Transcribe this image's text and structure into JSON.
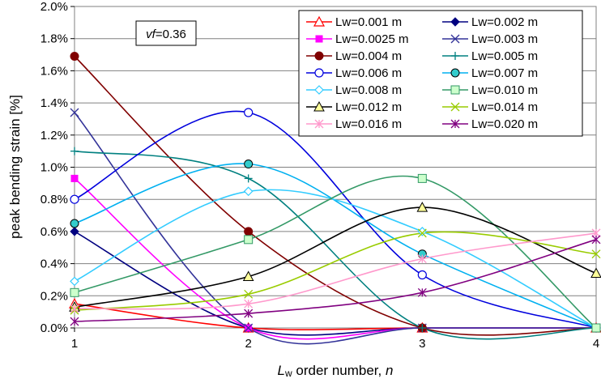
{
  "chart_data": {
    "type": "line",
    "xlabel_italic": "L",
    "xlabel_sub": "w",
    "xlabel_rest": " order number, ",
    "xlabel_n": "n",
    "ylabel": "peak bending strain [%]",
    "x_ticks": [
      "1",
      "2",
      "3",
      "4"
    ],
    "y_ticks": [
      "0.0%",
      "0.2%",
      "0.4%",
      "0.6%",
      "0.8%",
      "1.0%",
      "1.2%",
      "1.4%",
      "1.6%",
      "1.8%",
      "2.0%"
    ],
    "xlim": [
      1,
      4
    ],
    "ylim": [
      0,
      2.0
    ],
    "grid": "horizontal",
    "legend_position": "top-right",
    "annotation_italic": "vf",
    "annotation_rest": "=0.36",
    "series": [
      {
        "name": "Lw=0.001 m",
        "color": "#ff0000",
        "marker": "triangle-open",
        "x": [
          1,
          2,
          3,
          4
        ],
        "values": [
          0.15,
          0.0,
          0.0,
          0.0
        ]
      },
      {
        "name": "Lw=0.002 m",
        "color": "#000080",
        "marker": "diamond-filled",
        "x": [
          1,
          2,
          3,
          4
        ],
        "values": [
          0.6,
          0.0,
          0.0,
          0.0
        ]
      },
      {
        "name": "Lw=0.0025 m",
        "color": "#ff00ff",
        "marker": "square-filled",
        "x": [
          1,
          2,
          3,
          4
        ],
        "values": [
          0.93,
          0.0,
          0.0,
          0.0
        ]
      },
      {
        "name": "Lw=0.003 m",
        "color": "#333399",
        "marker": "x",
        "x": [
          1,
          2,
          3,
          4
        ],
        "values": [
          1.34,
          0.0,
          0.0,
          0.0
        ]
      },
      {
        "name": "Lw=0.004 m",
        "color": "#800000",
        "marker": "circle-filled",
        "x": [
          1,
          2,
          3,
          4
        ],
        "values": [
          1.69,
          0.6,
          0.0,
          0.0
        ]
      },
      {
        "name": "Lw=0.005 m",
        "color": "#008080",
        "marker": "plus",
        "x": [
          1,
          2,
          3,
          4
        ],
        "values": [
          1.1,
          0.93,
          0.0,
          0.0
        ]
      },
      {
        "name": "Lw=0.006 m",
        "color": "#0000dd",
        "marker": "circle-open",
        "x": [
          1,
          2,
          3,
          4
        ],
        "values": [
          0.8,
          1.34,
          0.33,
          0.0
        ]
      },
      {
        "name": "Lw=0.007 m",
        "color": "#00b0f0",
        "marker": "circle-teal",
        "x": [
          1,
          2,
          3,
          4
        ],
        "values": [
          0.65,
          1.02,
          0.46,
          0.0
        ]
      },
      {
        "name": "Lw=0.008 m",
        "color": "#33ccff",
        "marker": "diamond-open",
        "x": [
          1,
          2,
          3,
          4
        ],
        "values": [
          0.29,
          0.85,
          0.6,
          0.0
        ]
      },
      {
        "name": "Lw=0.010 m",
        "color": "#339966",
        "marker": "square-light",
        "x": [
          1,
          2,
          3,
          4
        ],
        "values": [
          0.22,
          0.55,
          0.93,
          0.0
        ]
      },
      {
        "name": "Lw=0.012 m",
        "color": "#000000",
        "marker": "triangle-yellow",
        "x": [
          1,
          2,
          3,
          4
        ],
        "values": [
          0.13,
          0.32,
          0.75,
          0.34
        ]
      },
      {
        "name": "Lw=0.014 m",
        "color": "#99cc00",
        "marker": "x",
        "x": [
          1,
          2,
          3,
          4
        ],
        "values": [
          0.11,
          0.21,
          0.59,
          0.46
        ]
      },
      {
        "name": "Lw=0.016 m",
        "color": "#ff99cc",
        "marker": "asterisk",
        "x": [
          1,
          2,
          3,
          4
        ],
        "values": [
          0.12,
          0.15,
          0.43,
          0.59
        ]
      },
      {
        "name": "Lw=0.020 m",
        "color": "#800080",
        "marker": "asterisk",
        "x": [
          1,
          2,
          3,
          4
        ],
        "values": [
          0.04,
          0.09,
          0.22,
          0.55
        ]
      }
    ]
  }
}
